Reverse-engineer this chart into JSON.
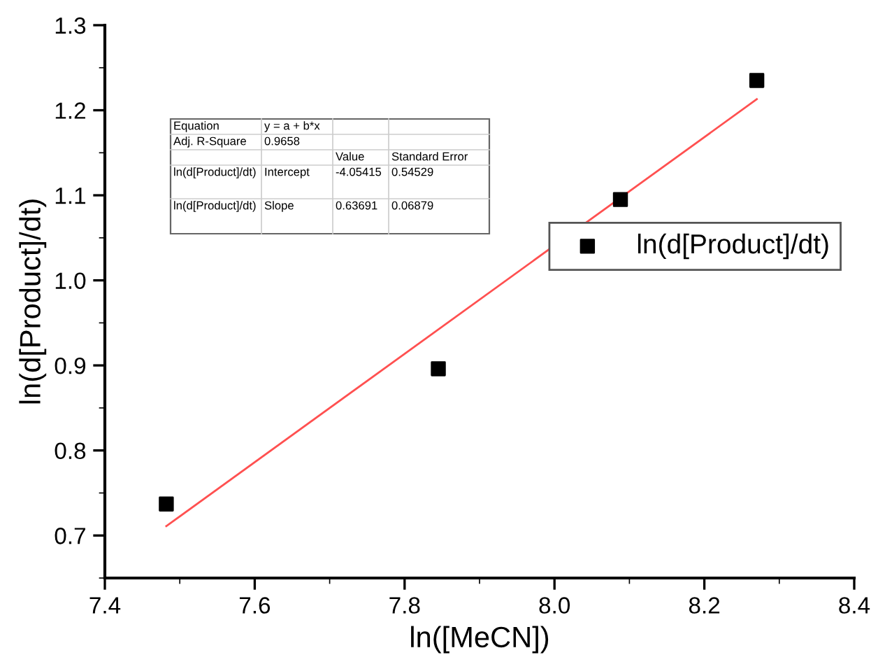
{
  "chart_data": {
    "type": "scatter",
    "xlabel": "ln([MeCN])",
    "ylabel": "ln(d[Product]/dt)",
    "xlim": [
      7.4,
      8.4
    ],
    "xticks": [
      7.4,
      7.6,
      7.8,
      {
        "value": 8.0,
        "label": "8.0"
      },
      8.2,
      8.4
    ],
    "ylim": [
      0.65,
      1.3
    ],
    "yticks": [
      0.7,
      0.8,
      0.9,
      {
        "value": 1.0,
        "label": "1.0"
      },
      1.1,
      1.2,
      1.3
    ],
    "grid": false,
    "legend": "right",
    "marker": "square",
    "series": [
      {
        "name": "ln(d[Product]/dt)",
        "color": "#000000",
        "x": [
          7.482,
          7.845,
          8.088,
          8.27
        ],
        "values": [
          0.737,
          0.896,
          1.095,
          1.235
        ]
      },
      {
        "type": "line",
        "marker": "none",
        "color": "#ff5050",
        "x": [
          7.482,
          8.27
        ],
        "values": [
          0.711,
          1.213
        ]
      }
    ],
    "annotations": [
      "Equation",
      "y = a + b*x",
      "Adj. R-Square",
      "0.9658",
      "Value",
      "Standard Error",
      "ln(d[Product]/dt)",
      "Intercept",
      "-4.05415",
      "0.54529",
      "ln(d[Product]/dt)",
      "Slope",
      "0.63691",
      "0.06879"
    ]
  }
}
